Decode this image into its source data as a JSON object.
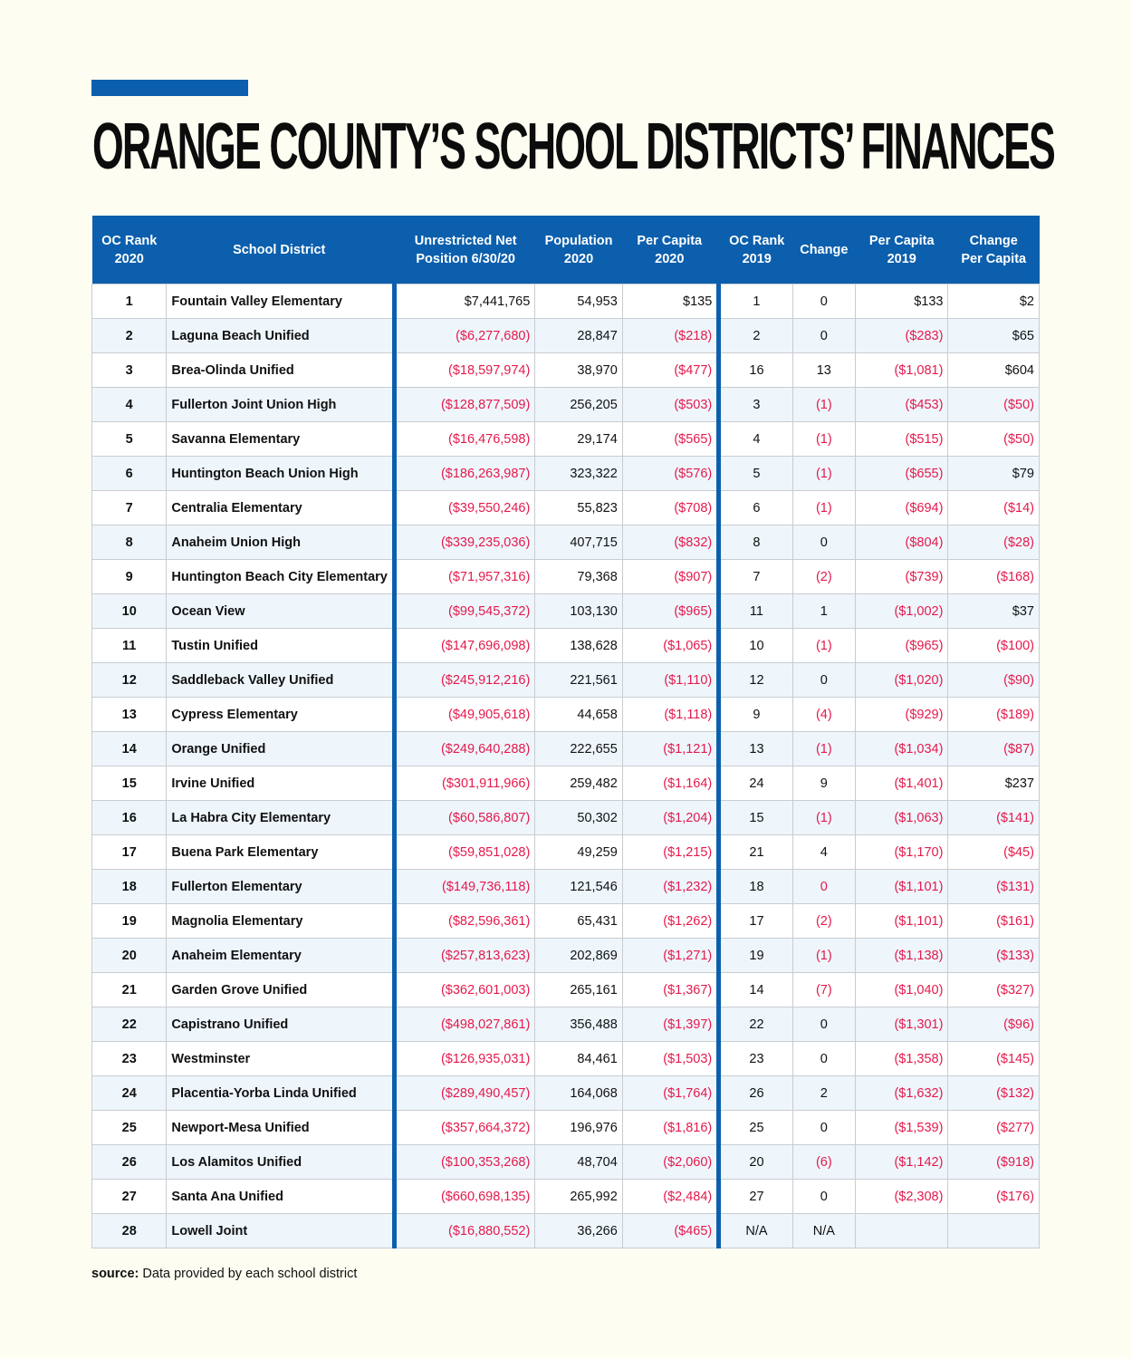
{
  "title": "ORANGE COUNTY’S SCHOOL DISTRICTS’ FINANCES",
  "colors": {
    "accent": "#0b5fad",
    "negative": "#e5194b",
    "background": "#fdfdf1",
    "alt_row": "#eef6fc"
  },
  "columns": [
    "OC Rank 2020",
    "School District",
    "Unrestricted Net Position 6/30/20",
    "Population 2020",
    "Per Capita 2020",
    "OC Rank 2019",
    "Change",
    "Per Capita 2019",
    "Change Per Capita"
  ],
  "rows": [
    [
      "1",
      "Fountain Valley Elementary",
      "$7,441,765",
      "54,953",
      "$135",
      "1",
      "0",
      "$133",
      "$2"
    ],
    [
      "2",
      "Laguna Beach Unified",
      "($6,277,680)",
      "28,847",
      "($218)",
      "2",
      "0",
      "($283)",
      "$65"
    ],
    [
      "3",
      "Brea-Olinda Unified",
      "($18,597,974)",
      "38,970",
      "($477)",
      "16",
      "13",
      "($1,081)",
      "$604"
    ],
    [
      "4",
      "Fullerton Joint Union High",
      "($128,877,509)",
      "256,205",
      "($503)",
      "3",
      "(1)",
      "($453)",
      "($50)"
    ],
    [
      "5",
      "Savanna Elementary",
      "($16,476,598)",
      "29,174",
      "($565)",
      "4",
      "(1)",
      "($515)",
      "($50)"
    ],
    [
      "6",
      "Huntington Beach Union High",
      "($186,263,987)",
      "323,322",
      "($576)",
      "5",
      "(1)",
      "($655)",
      "$79"
    ],
    [
      "7",
      "Centralia Elementary",
      "($39,550,246)",
      "55,823",
      "($708)",
      "6",
      "(1)",
      "($694)",
      "($14)"
    ],
    [
      "8",
      "Anaheim Union High",
      "($339,235,036)",
      "407,715",
      "($832)",
      "8",
      "0",
      "($804)",
      "($28)"
    ],
    [
      "9",
      "Huntington Beach City Elementary",
      "($71,957,316)",
      "79,368",
      "($907)",
      "7",
      "(2)",
      "($739)",
      "($168)"
    ],
    [
      "10",
      "Ocean View",
      "($99,545,372)",
      "103,130",
      "($965)",
      "11",
      "1",
      "($1,002)",
      "$37"
    ],
    [
      "11",
      "Tustin Unified",
      "($147,696,098)",
      "138,628",
      "($1,065)",
      "10",
      "(1)",
      "($965)",
      "($100)"
    ],
    [
      "12",
      "Saddleback Valley Unified",
      "($245,912,216)",
      "221,561",
      "($1,110)",
      "12",
      "0",
      "($1,020)",
      "($90)"
    ],
    [
      "13",
      "Cypress Elementary",
      "($49,905,618)",
      "44,658",
      "($1,118)",
      "9",
      "(4)",
      "($929)",
      "($189)"
    ],
    [
      "14",
      "Orange Unified",
      "($249,640,288)",
      "222,655",
      "($1,121)",
      "13",
      "(1)",
      "($1,034)",
      "($87)"
    ],
    [
      "15",
      "Irvine Unified",
      "($301,911,966)",
      "259,482",
      "($1,164)",
      "24",
      "9",
      "($1,401)",
      "$237"
    ],
    [
      "16",
      "La Habra City Elementary",
      "($60,586,807)",
      "50,302",
      "($1,204)",
      "15",
      "(1)",
      "($1,063)",
      "($141)"
    ],
    [
      "17",
      "Buena Park Elementary",
      "($59,851,028)",
      "49,259",
      "($1,215)",
      "21",
      "4",
      "($1,170)",
      "($45)"
    ],
    [
      "18",
      "Fullerton Elementary",
      "($149,736,118)",
      "121,546",
      "($1,232)",
      "18",
      "0",
      "($1,101)",
      "($131)"
    ],
    [
      "19",
      "Magnolia Elementary",
      "($82,596,361)",
      "65,431",
      "($1,262)",
      "17",
      "(2)",
      "($1,101)",
      "($161)"
    ],
    [
      "20",
      "Anaheim Elementary",
      "($257,813,623)",
      "202,869",
      "($1,271)",
      "19",
      "(1)",
      "($1,138)",
      "($133)"
    ],
    [
      "21",
      "Garden Grove Unified",
      "($362,601,003)",
      "265,161",
      "($1,367)",
      "14",
      "(7)",
      "($1,040)",
      "($327)"
    ],
    [
      "22",
      "Capistrano Unified",
      "($498,027,861)",
      "356,488",
      "($1,397)",
      "22",
      "0",
      "($1,301)",
      "($96)"
    ],
    [
      "23",
      "Westminster",
      "($126,935,031)",
      "84,461",
      "($1,503)",
      "23",
      "0",
      "($1,358)",
      "($145)"
    ],
    [
      "24",
      "Placentia-Yorba Linda Unified",
      "($289,490,457)",
      "164,068",
      "($1,764)",
      "26",
      "2",
      "($1,632)",
      "($132)"
    ],
    [
      "25",
      "Newport-Mesa Unified",
      "($357,664,372)",
      "196,976",
      "($1,816)",
      "25",
      "0",
      "($1,539)",
      "($277)"
    ],
    [
      "26",
      "Los Alamitos Unified",
      "($100,353,268)",
      "48,704",
      "($2,060)",
      "20",
      "(6)",
      "($1,142)",
      "($918)"
    ],
    [
      "27",
      "Santa Ana Unified",
      "($660,698,135)",
      "265,992",
      "($2,484)",
      "27",
      "0",
      "($2,308)",
      "($176)"
    ],
    [
      "28",
      "Lowell Joint",
      "($16,880,552)",
      "36,266",
      "($465)",
      "N/A",
      "N/A",
      "",
      ""
    ]
  ],
  "red_zero_change_rows": [
    "18"
  ],
  "source": {
    "label": "source:",
    "text": "Data provided by each school district"
  }
}
